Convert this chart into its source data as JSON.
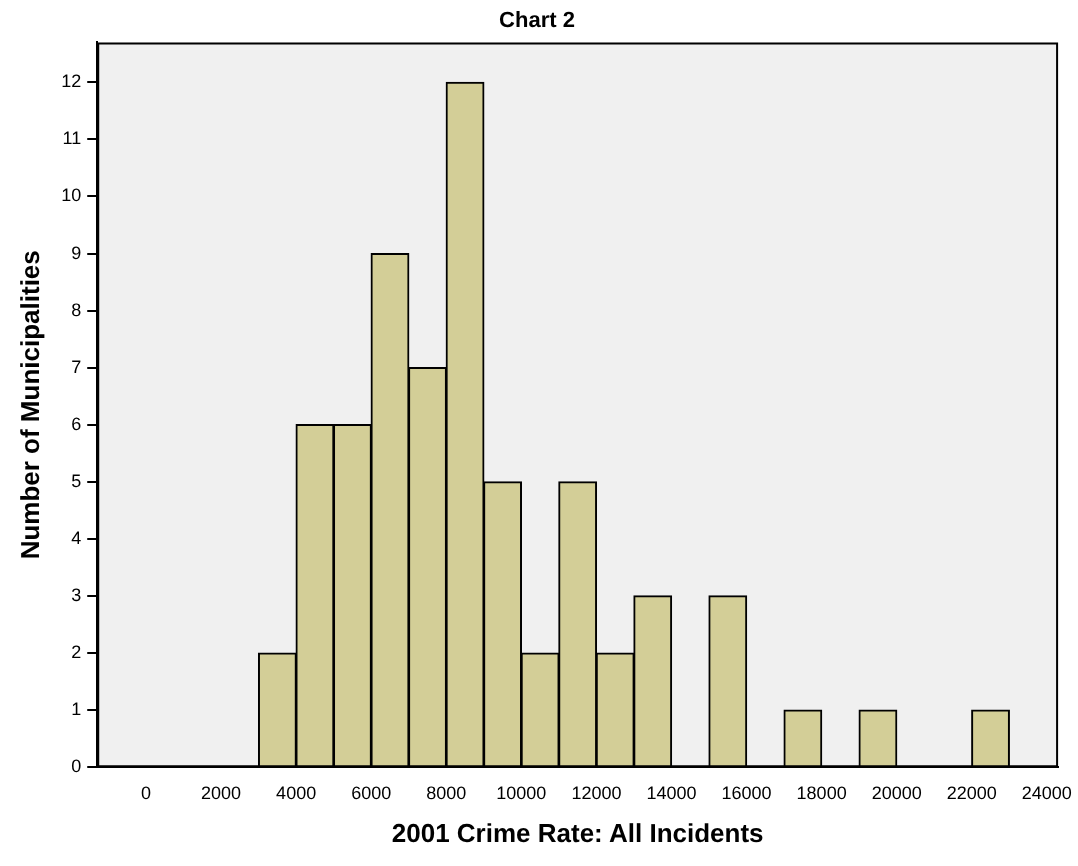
{
  "chart_data": {
    "type": "histogram",
    "title": "Chart 2",
    "xlabel": "2001 Crime Rate: All Incidents",
    "ylabel": "Number of Municipalities",
    "bins": [
      3000,
      4000,
      5000,
      6000,
      7000,
      8000,
      9000,
      10000,
      11000,
      12000,
      13000,
      14000,
      15000,
      16000,
      17000,
      18000,
      19000,
      20000,
      21000,
      22000,
      23000
    ],
    "values": [
      2,
      6,
      6,
      9,
      7,
      12,
      5,
      2,
      5,
      2,
      3,
      0,
      3,
      0,
      1,
      0,
      1,
      0,
      0,
      1
    ],
    "color": "#d3ce97",
    "xlim": [
      -1300,
      24300
    ],
    "xticks": [
      0,
      2000,
      4000,
      6000,
      8000,
      10000,
      12000,
      14000,
      16000,
      18000,
      20000,
      22000,
      24000
    ],
    "ylim": [
      0,
      12.7
    ],
    "yticks": [
      0,
      1,
      2,
      3,
      4,
      5,
      6,
      7,
      8,
      9,
      10,
      11,
      12
    ],
    "grid": false,
    "legend": false
  }
}
